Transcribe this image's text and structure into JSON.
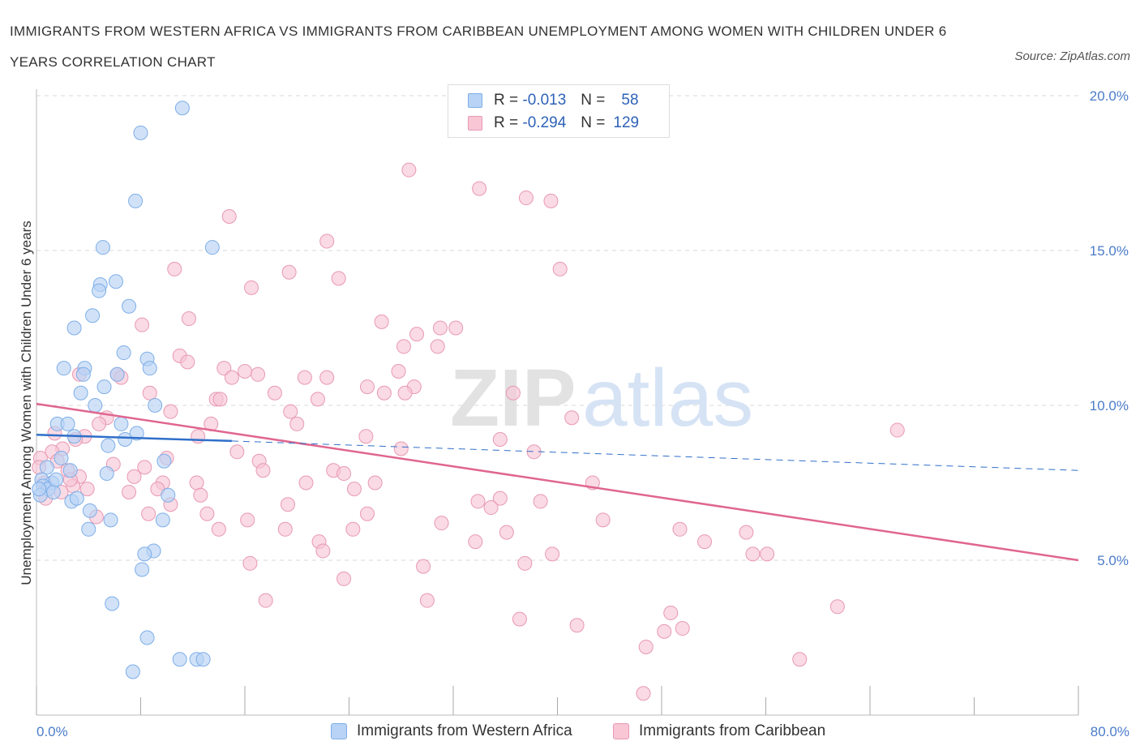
{
  "header": {
    "title": "IMMIGRANTS FROM WESTERN AFRICA VS IMMIGRANTS FROM CARIBBEAN UNEMPLOYMENT AMONG WOMEN WITH CHILDREN UNDER 6 YEARS CORRELATION CHART",
    "source": "Source: ZipAtlas.com"
  },
  "watermark": {
    "zip": "ZIP",
    "atlas": "atlas"
  },
  "legend_stats": {
    "western_africa": {
      "r_label": "R =",
      "r_value": "-0.013",
      "n_label": "N =",
      "n_value": "58"
    },
    "caribbean": {
      "r_label": "R =",
      "r_value": "-0.294",
      "n_label": "N =",
      "n_value": "129"
    }
  },
  "colors": {
    "blue_fill": "#b8d3f5",
    "blue_stroke": "#7eaee8",
    "blue_line": "#2f6fc9",
    "pink_fill": "#f8c6d5",
    "pink_stroke": "#e899b3",
    "pink_line": "#e0668f",
    "grid": "#d9d9d9",
    "tick_text": "#4a7cc9"
  },
  "chart_data": {
    "type": "scatter",
    "title": "IMMIGRANTS FROM WESTERN AFRICA VS IMMIGRANTS FROM CARIBBEAN UNEMPLOYMENT AMONG WOMEN WITH CHILDREN UNDER 6 YEARS CORRELATION CHART",
    "xlabel": "",
    "ylabel": "Unemployment Among Women with Children Under 6 years",
    "xlim": [
      0,
      80
    ],
    "ylim": [
      0,
      20
    ],
    "x_tick_labels": [
      "0.0%",
      "80.0%"
    ],
    "y_ticks": [
      5,
      10,
      15,
      20
    ],
    "y_tick_labels": [
      "5.0%",
      "10.0%",
      "15.0%",
      "20.0%"
    ],
    "grid": "horizontal dashed",
    "legend": "bottom-center",
    "series": [
      {
        "name": "Immigrants from Western Africa",
        "color": "#b8d3f5",
        "r": -0.013,
        "n": 58,
        "trend": {
          "x": [
            0,
            15
          ],
          "y": [
            9.05,
            8.85
          ]
        },
        "trend_extended": {
          "x": [
            15,
            80
          ],
          "y": [
            8.85,
            7.9
          ]
        },
        "points": [
          [
            11.2,
            19.6
          ],
          [
            8.0,
            18.8
          ],
          [
            7.6,
            16.6
          ],
          [
            5.1,
            15.1
          ],
          [
            13.5,
            15.1
          ],
          [
            6.1,
            14.0
          ],
          [
            4.9,
            13.9
          ],
          [
            4.8,
            13.7
          ],
          [
            7.1,
            13.2
          ],
          [
            4.3,
            12.9
          ],
          [
            2.9,
            12.5
          ],
          [
            6.7,
            11.7
          ],
          [
            8.5,
            11.5
          ],
          [
            2.1,
            11.2
          ],
          [
            3.7,
            11.2
          ],
          [
            8.7,
            11.2
          ],
          [
            6.2,
            11.0
          ],
          [
            3.6,
            11.0
          ],
          [
            5.2,
            10.6
          ],
          [
            3.4,
            10.4
          ],
          [
            9.1,
            10.0
          ],
          [
            4.5,
            10.0
          ],
          [
            1.6,
            9.4
          ],
          [
            2.4,
            9.4
          ],
          [
            6.5,
            9.4
          ],
          [
            7.7,
            9.1
          ],
          [
            2.9,
            9.0
          ],
          [
            6.8,
            8.9
          ],
          [
            5.5,
            8.7
          ],
          [
            1.9,
            8.3
          ],
          [
            9.8,
            8.2
          ],
          [
            2.6,
            7.9
          ],
          [
            0.8,
            8.0
          ],
          [
            5.4,
            7.8
          ],
          [
            0.4,
            7.6
          ],
          [
            1.2,
            7.5
          ],
          [
            0.5,
            7.4
          ],
          [
            0.9,
            7.3
          ],
          [
            1.3,
            7.2
          ],
          [
            10.1,
            7.1
          ],
          [
            0.3,
            7.1
          ],
          [
            2.7,
            6.9
          ],
          [
            3.1,
            7.0
          ],
          [
            4.1,
            6.6
          ],
          [
            5.7,
            6.3
          ],
          [
            9.7,
            6.3
          ],
          [
            4.0,
            6.0
          ],
          [
            9.0,
            5.3
          ],
          [
            8.3,
            5.2
          ],
          [
            8.1,
            4.7
          ],
          [
            5.8,
            3.6
          ],
          [
            8.5,
            2.5
          ],
          [
            11.0,
            1.8
          ],
          [
            12.3,
            1.8
          ],
          [
            12.8,
            1.8
          ],
          [
            7.4,
            1.4
          ],
          [
            0.2,
            7.3
          ],
          [
            1.5,
            7.6
          ]
        ]
      },
      {
        "name": "Immigrants from Caribbean",
        "color": "#f8c6d5",
        "r": -0.294,
        "n": 129,
        "trend": {
          "x": [
            0,
            80
          ],
          "y": [
            10.05,
            5.0
          ]
        },
        "points": [
          [
            28.6,
            17.6
          ],
          [
            34.0,
            17.0
          ],
          [
            37.6,
            16.7
          ],
          [
            39.5,
            16.6
          ],
          [
            14.8,
            16.1
          ],
          [
            22.3,
            15.3
          ],
          [
            10.6,
            14.4
          ],
          [
            19.4,
            14.3
          ],
          [
            23.2,
            14.1
          ],
          [
            40.2,
            14.4
          ],
          [
            16.5,
            13.8
          ],
          [
            11.7,
            12.8
          ],
          [
            8.1,
            12.6
          ],
          [
            26.5,
            12.7
          ],
          [
            31.0,
            12.5
          ],
          [
            32.2,
            12.5
          ],
          [
            29.2,
            12.3
          ],
          [
            28.2,
            11.9
          ],
          [
            30.8,
            11.9
          ],
          [
            11.0,
            11.6
          ],
          [
            11.6,
            11.4
          ],
          [
            14.4,
            11.2
          ],
          [
            16.0,
            11.1
          ],
          [
            17.0,
            11.0
          ],
          [
            27.8,
            11.1
          ],
          [
            6.2,
            11.0
          ],
          [
            6.5,
            10.9
          ],
          [
            3.3,
            11.0
          ],
          [
            15.0,
            10.9
          ],
          [
            20.6,
            10.9
          ],
          [
            22.3,
            10.9
          ],
          [
            25.4,
            10.6
          ],
          [
            29.0,
            10.6
          ],
          [
            36.6,
            10.4
          ],
          [
            8.7,
            10.4
          ],
          [
            18.3,
            10.4
          ],
          [
            26.7,
            10.4
          ],
          [
            28.3,
            10.4
          ],
          [
            13.8,
            10.2
          ],
          [
            14.1,
            10.2
          ],
          [
            21.6,
            10.2
          ],
          [
            10.3,
            9.8
          ],
          [
            19.5,
            9.8
          ],
          [
            41.1,
            9.6
          ],
          [
            66.1,
            9.2
          ],
          [
            5.4,
            9.6
          ],
          [
            4.8,
            9.4
          ],
          [
            20.0,
            9.4
          ],
          [
            13.4,
            9.4
          ],
          [
            25.3,
            9.0
          ],
          [
            12.4,
            9.0
          ],
          [
            1.4,
            9.1
          ],
          [
            3.7,
            9.0
          ],
          [
            3.0,
            8.9
          ],
          [
            35.6,
            8.9
          ],
          [
            28.0,
            8.6
          ],
          [
            15.4,
            8.5
          ],
          [
            38.2,
            8.5
          ],
          [
            2.0,
            8.6
          ],
          [
            1.2,
            8.5
          ],
          [
            10.0,
            8.3
          ],
          [
            17.1,
            8.2
          ],
          [
            0.3,
            8.3
          ],
          [
            5.9,
            8.1
          ],
          [
            8.3,
            8.0
          ],
          [
            17.4,
            7.9
          ],
          [
            22.8,
            7.9
          ],
          [
            23.6,
            7.8
          ],
          [
            2.4,
            7.9
          ],
          [
            3.3,
            7.7
          ],
          [
            7.5,
            7.7
          ],
          [
            9.7,
            7.5
          ],
          [
            12.3,
            7.5
          ],
          [
            20.7,
            7.5
          ],
          [
            26.0,
            7.5
          ],
          [
            42.7,
            7.5
          ],
          [
            0.6,
            7.5
          ],
          [
            2.8,
            7.4
          ],
          [
            7.1,
            7.2
          ],
          [
            9.3,
            7.3
          ],
          [
            12.6,
            7.1
          ],
          [
            24.4,
            7.3
          ],
          [
            1.9,
            7.2
          ],
          [
            0.7,
            7.0
          ],
          [
            33.9,
            6.9
          ],
          [
            35.6,
            7.0
          ],
          [
            38.7,
            6.9
          ],
          [
            10.3,
            6.8
          ],
          [
            19.3,
            6.8
          ],
          [
            34.9,
            6.7
          ],
          [
            8.6,
            6.5
          ],
          [
            13.1,
            6.5
          ],
          [
            25.4,
            6.5
          ],
          [
            4.6,
            6.4
          ],
          [
            16.2,
            6.3
          ],
          [
            43.5,
            6.3
          ],
          [
            31.1,
            6.2
          ],
          [
            14.0,
            6.0
          ],
          [
            19.1,
            6.0
          ],
          [
            24.3,
            6.0
          ],
          [
            49.4,
            6.0
          ],
          [
            36.1,
            5.9
          ],
          [
            54.5,
            5.9
          ],
          [
            21.7,
            5.6
          ],
          [
            33.7,
            5.6
          ],
          [
            51.3,
            5.6
          ],
          [
            22.0,
            5.3
          ],
          [
            39.6,
            5.2
          ],
          [
            55.0,
            5.2
          ],
          [
            56.1,
            5.2
          ],
          [
            16.4,
            4.9
          ],
          [
            37.5,
            4.9
          ],
          [
            29.7,
            4.8
          ],
          [
            23.6,
            4.4
          ],
          [
            17.6,
            3.7
          ],
          [
            30.0,
            3.7
          ],
          [
            61.5,
            3.5
          ],
          [
            48.7,
            3.3
          ],
          [
            37.1,
            3.1
          ],
          [
            41.5,
            2.9
          ],
          [
            49.6,
            2.8
          ],
          [
            48.2,
            2.7
          ],
          [
            46.8,
            2.2
          ],
          [
            58.6,
            1.8
          ],
          [
            46.6,
            0.7
          ],
          [
            0.2,
            8.0
          ],
          [
            1.6,
            8.2
          ],
          [
            2.6,
            7.6
          ],
          [
            3.9,
            7.3
          ]
        ]
      }
    ]
  },
  "bottom_legend": {
    "series_1": "Immigrants from Western Africa",
    "series_2": "Immigrants from Caribbean"
  }
}
